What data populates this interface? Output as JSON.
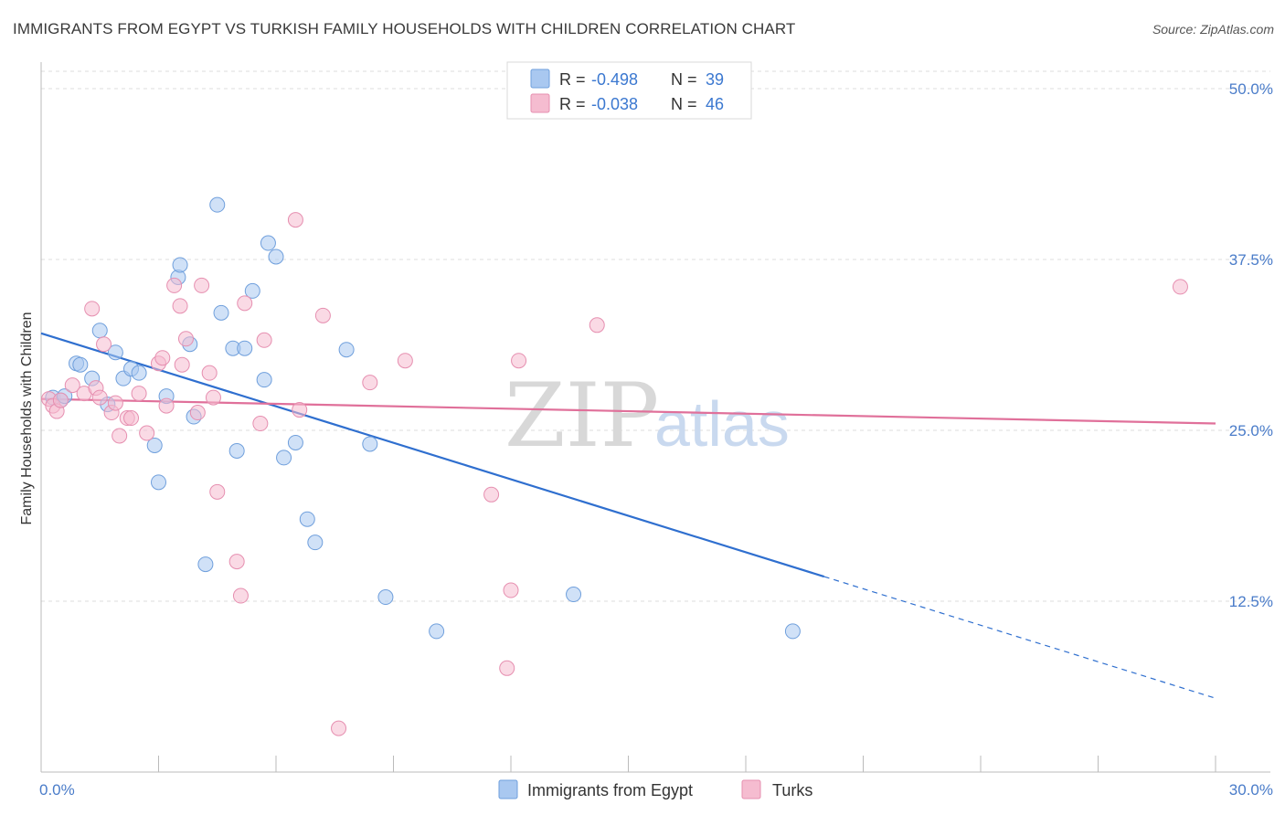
{
  "header": {
    "title": "IMMIGRANTS FROM EGYPT VS TURKISH FAMILY HOUSEHOLDS WITH CHILDREN CORRELATION CHART",
    "source": "Source: ZipAtlas.com"
  },
  "watermark": {
    "zip": "ZIP",
    "atlas": "atlas"
  },
  "legend_top": [
    {
      "r_label": "R =",
      "r_value": "-0.498",
      "n_label": "N =",
      "n_value": "39"
    },
    {
      "r_label": "R =",
      "r_value": "-0.038",
      "n_label": "N =",
      "n_value": "46"
    }
  ],
  "legend_bottom": [
    "Immigrants from Egypt",
    "Turks"
  ],
  "colors": {
    "series1_fill": "#a9c8f0",
    "series1_stroke": "#6f9fdc",
    "series1_line": "#2f6fcf",
    "series2_fill": "#f5bcd0",
    "series2_stroke": "#e68fb0",
    "series2_line": "#e0709a",
    "grid": "#dddddd",
    "tick_text": "#4a7cc9"
  },
  "chart_data": {
    "type": "scatter",
    "title": "IMMIGRANTS FROM EGYPT VS TURKISH FAMILY HOUSEHOLDS WITH CHILDREN CORRELATION CHART",
    "xlabel": "",
    "ylabel": "Family Households with Children",
    "xlim": [
      0,
      30
    ],
    "ylim": [
      0,
      50
    ],
    "y_ticks": [
      12.5,
      25.0,
      37.5,
      50.0
    ],
    "y_tick_labels": [
      "12.5%",
      "25.0%",
      "37.5%",
      "50.0%"
    ],
    "x_tick_labels": [
      "0.0%",
      "30.0%"
    ],
    "grid": true,
    "series": [
      {
        "name": "Immigrants from Egypt",
        "x": [
          0.3,
          0.5,
          0.6,
          0.9,
          1.0,
          1.3,
          1.5,
          1.7,
          1.9,
          2.1,
          2.3,
          2.5,
          2.9,
          3.0,
          3.2,
          3.5,
          3.55,
          3.8,
          3.9,
          4.2,
          4.5,
          4.6,
          4.9,
          5.0,
          5.2,
          5.4,
          5.7,
          5.8,
          6.0,
          6.2,
          6.5,
          6.8,
          7.0,
          7.8,
          8.4,
          8.8,
          10.1,
          13.6,
          19.2
        ],
        "y": [
          27.4,
          27.2,
          27.5,
          29.9,
          29.8,
          28.8,
          32.3,
          26.9,
          30.7,
          28.8,
          29.5,
          29.2,
          23.9,
          21.2,
          27.5,
          36.2,
          37.1,
          31.3,
          26.0,
          15.2,
          41.5,
          33.6,
          31.0,
          23.5,
          31.0,
          35.2,
          28.7,
          38.7,
          37.7,
          23.0,
          24.1,
          18.5,
          16.8,
          30.9,
          24.0,
          12.8,
          10.3,
          13.0,
          10.3
        ],
        "r": [
          -0.498
        ],
        "n": 39
      },
      {
        "name": "Turks",
        "x": [
          0.2,
          0.3,
          0.4,
          0.5,
          0.8,
          1.1,
          1.3,
          1.4,
          1.5,
          1.6,
          1.8,
          1.9,
          2.0,
          2.2,
          2.3,
          2.5,
          2.7,
          3.0,
          3.1,
          3.2,
          3.4,
          3.55,
          3.6,
          3.7,
          4.0,
          4.1,
          4.3,
          4.4,
          4.5,
          5.0,
          5.1,
          5.2,
          5.6,
          5.7,
          6.5,
          6.6,
          7.2,
          7.6,
          8.4,
          9.3,
          11.5,
          11.9,
          12.0,
          12.2,
          14.2,
          29.1
        ],
        "y": [
          27.3,
          26.8,
          26.4,
          27.2,
          28.3,
          27.7,
          33.9,
          28.1,
          27.4,
          31.3,
          26.3,
          27.0,
          24.6,
          25.9,
          25.9,
          27.7,
          24.8,
          29.9,
          30.3,
          26.8,
          35.6,
          34.1,
          29.8,
          31.7,
          26.3,
          35.6,
          29.2,
          27.4,
          20.5,
          15.4,
          12.9,
          34.3,
          25.5,
          31.6,
          40.4,
          26.5,
          33.4,
          3.2,
          28.5,
          30.1,
          20.3,
          7.6,
          13.3,
          30.1,
          32.7,
          35.5
        ],
        "r": [
          -0.038
        ],
        "n": 46
      }
    ],
    "trend_lines": [
      {
        "series": "Immigrants from Egypt",
        "x_start": 0,
        "y_start": 32.1,
        "x_solid_end": 20.0,
        "y_solid_end": 14.3,
        "x_dashed_end": 30,
        "y_dashed_end": 5.4
      },
      {
        "series": "Turks",
        "x_start": 0,
        "y_start": 27.3,
        "x_end": 30,
        "y_end": 25.5
      }
    ]
  }
}
